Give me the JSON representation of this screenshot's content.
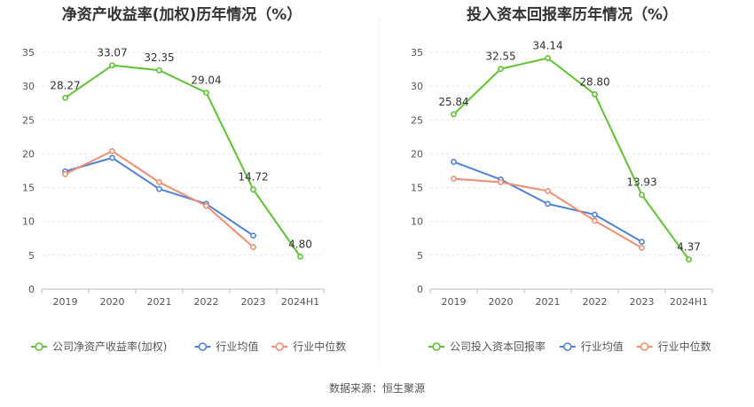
{
  "source_note": "数据来源：恒生聚源",
  "colors": {
    "company": "#5cc42e",
    "industry_avg": "#4f82d9",
    "industry_median": "#f08e6e",
    "axis": "#bfbfbf",
    "grid": "#e6e6e6",
    "divider": "#eeeeee",
    "text": "#555555",
    "title": "#333333"
  },
  "chart_data": [
    {
      "type": "line",
      "title": "净资产收益率(加权)历年情况（%）",
      "categories": [
        "2019",
        "2020",
        "2021",
        "2022",
        "2023",
        "2024H1"
      ],
      "ylim": [
        0,
        35
      ],
      "yticks": [
        0,
        5,
        10,
        15,
        20,
        25,
        30,
        35
      ],
      "grid": true,
      "legend_position": "bottom-left",
      "series": [
        {
          "name": "公司净资产收益率(加权)",
          "role": "company",
          "values": [
            28.27,
            33.07,
            32.35,
            29.04,
            14.72,
            4.8
          ],
          "labels": [
            "28.27",
            "33.07",
            "32.35",
            "29.04",
            "14.72",
            "4.80"
          ]
        },
        {
          "name": "行业均值",
          "role": "industry_avg",
          "values": [
            17.4,
            19.4,
            14.8,
            12.6,
            7.9,
            null
          ]
        },
        {
          "name": "行业中位数",
          "role": "industry_median",
          "values": [
            17.0,
            20.4,
            15.8,
            12.3,
            6.2,
            null
          ]
        }
      ]
    },
    {
      "type": "line",
      "title": "投入资本回报率历年情况（%）",
      "categories": [
        "2019",
        "2020",
        "2021",
        "2022",
        "2023",
        "2024H1"
      ],
      "ylim": [
        0,
        35
      ],
      "yticks": [
        0,
        5,
        10,
        15,
        20,
        25,
        30,
        35
      ],
      "grid": true,
      "legend_position": "bottom-left",
      "series": [
        {
          "name": "公司投入资本回报率",
          "role": "company",
          "values": [
            25.84,
            32.55,
            34.14,
            28.8,
            13.93,
            4.37
          ],
          "labels": [
            "25.84",
            "32.55",
            "34.14",
            "28.80",
            "13.93",
            "4.37"
          ]
        },
        {
          "name": "行业均值",
          "role": "industry_avg",
          "values": [
            18.8,
            16.2,
            12.6,
            11.0,
            7.0,
            null
          ]
        },
        {
          "name": "行业中位数",
          "role": "industry_median",
          "values": [
            16.3,
            15.8,
            14.5,
            10.1,
            6.1,
            null
          ]
        }
      ]
    }
  ]
}
